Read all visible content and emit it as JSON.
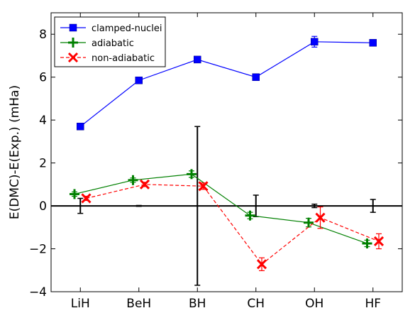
{
  "chart_data": {
    "type": "line",
    "title": "",
    "xlabel": "",
    "ylabel": "E(DMC)-E(Exp.) (mHa)",
    "categories": [
      "LiH",
      "BeH",
      "BH",
      "CH",
      "OH",
      "HF"
    ],
    "ylim": [
      -4,
      9
    ],
    "yticks": [
      -4,
      -2,
      0,
      2,
      4,
      6,
      8
    ],
    "grid": false,
    "legend_position": "top-left",
    "series": [
      {
        "name": "clamped-nuclei",
        "color": "#0000ff",
        "marker": "square",
        "linestyle": "solid",
        "x": [
          0,
          1,
          2,
          3,
          4,
          5
        ],
        "values": [
          3.7,
          5.85,
          6.82,
          6.0,
          7.65,
          7.6
        ],
        "errors": [
          0.05,
          0.1,
          0.1,
          0.05,
          0.25,
          0.1
        ]
      },
      {
        "name": "adiabatic",
        "color": "#008000",
        "marker": "plus",
        "linestyle": "solid",
        "x": [
          -0.1,
          0.9,
          1.9,
          2.9,
          3.9,
          4.9
        ],
        "values": [
          0.55,
          1.2,
          1.48,
          -0.45,
          -0.78,
          -1.75
        ],
        "errors": [
          0.1,
          0.1,
          0.15,
          0.15,
          0.2,
          0.15
        ]
      },
      {
        "name": "non-adiabatic",
        "color": "#ff0000",
        "marker": "x",
        "linestyle": "dashed",
        "x": [
          0.1,
          1.1,
          2.1,
          3.1,
          4.1,
          5.1
        ],
        "values": [
          0.35,
          1.0,
          0.92,
          -2.72,
          -0.55,
          -1.65
        ],
        "errors": [
          0.1,
          0.1,
          0.15,
          0.3,
          0.5,
          0.35
        ]
      }
    ],
    "experimental_uncertainty": {
      "color": "#000000",
      "x": [
        0,
        1,
        2,
        3,
        4,
        5
      ],
      "values": [
        0,
        0,
        0,
        0,
        0,
        0
      ],
      "errors": [
        0.35,
        0.02,
        3.7,
        0.5,
        0.08,
        0.3
      ]
    },
    "reference_line": 0
  }
}
